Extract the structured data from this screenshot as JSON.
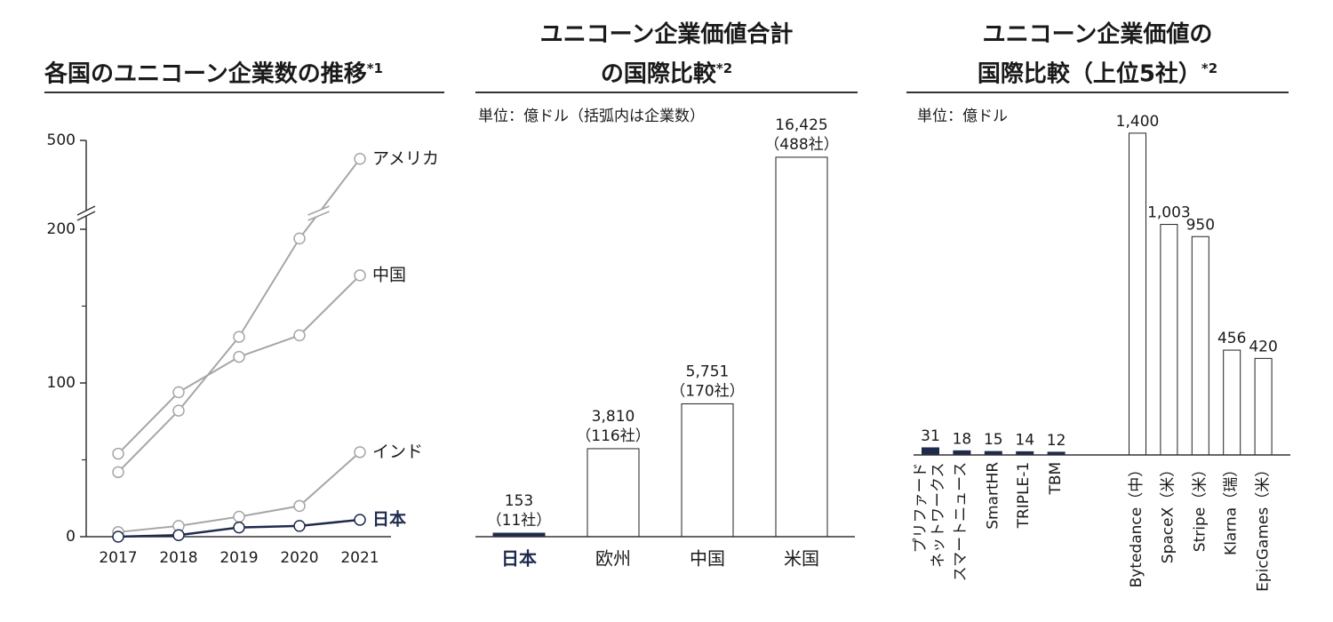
{
  "chart_data": [
    {
      "type": "line",
      "title": "各国のユニコーン企業数の推移",
      "title_note": "*1",
      "categories": [
        "2017",
        "2018",
        "2019",
        "2020",
        "2021"
      ],
      "series": [
        {
          "name": "アメリカ",
          "color": "#a6a6a6",
          "values": [
            42,
            82,
            130,
            194,
            488
          ]
        },
        {
          "name": "中国",
          "color": "#a6a6a6",
          "values": [
            54,
            94,
            117,
            131,
            170
          ]
        },
        {
          "name": "インド",
          "color": "#a6a6a6",
          "values": [
            3,
            7,
            13,
            20,
            55
          ]
        },
        {
          "name": "日本",
          "color": "#1f2b4d",
          "values": [
            0,
            1,
            6,
            7,
            11
          ]
        }
      ],
      "ylim": [
        0,
        500
      ],
      "yticks": [
        0,
        100,
        200,
        500
      ],
      "minor_yticks": [
        50,
        150
      ],
      "axis_break": true
    },
    {
      "type": "bar",
      "title": "ユニコーン企業価値合計\nの国際比較",
      "title_note": "*2",
      "note": "単位：億ドル（括弧内は企業数）",
      "categories": [
        "日本",
        "欧州",
        "中国",
        "米国"
      ],
      "values": [
        153,
        3810,
        5751,
        16425
      ],
      "value_labels": [
        "153",
        "3,810",
        "5,751",
        "16,425"
      ],
      "count_labels": [
        "（11社）",
        "（116社）",
        "（170社）",
        "（488社）"
      ],
      "colors": [
        "#1f2b4d",
        "#ffffff",
        "#ffffff",
        "#ffffff"
      ],
      "ylim": [
        0,
        18000
      ]
    },
    {
      "type": "bar",
      "title": "ユニコーン企業価値の\n国際比較（上位5社）",
      "title_note": "*2",
      "note": "単位：億ドル",
      "categories": [
        "プリファード\nネットワークス",
        "スマートニュース",
        "SmartHR",
        "TRIPLE-1",
        "TBM",
        "Bytedance（中）",
        "SpaceX（米）",
        "Stripe（米）",
        "Klarna（瑞）",
        "EpicGames（米）"
      ],
      "values": [
        31,
        18,
        15,
        14,
        12,
        1400,
        1003,
        950,
        456,
        420
      ],
      "value_labels": [
        "31",
        "18",
        "15",
        "14",
        "12",
        "1,400",
        "1,003",
        "950",
        "456",
        "420"
      ],
      "colors": [
        "#1f2b4d",
        "#1f2b4d",
        "#1f2b4d",
        "#1f2b4d",
        "#1f2b4d",
        "#ffffff",
        "#ffffff",
        "#ffffff",
        "#ffffff",
        "#ffffff"
      ],
      "ylim": [
        0,
        1500
      ]
    }
  ]
}
